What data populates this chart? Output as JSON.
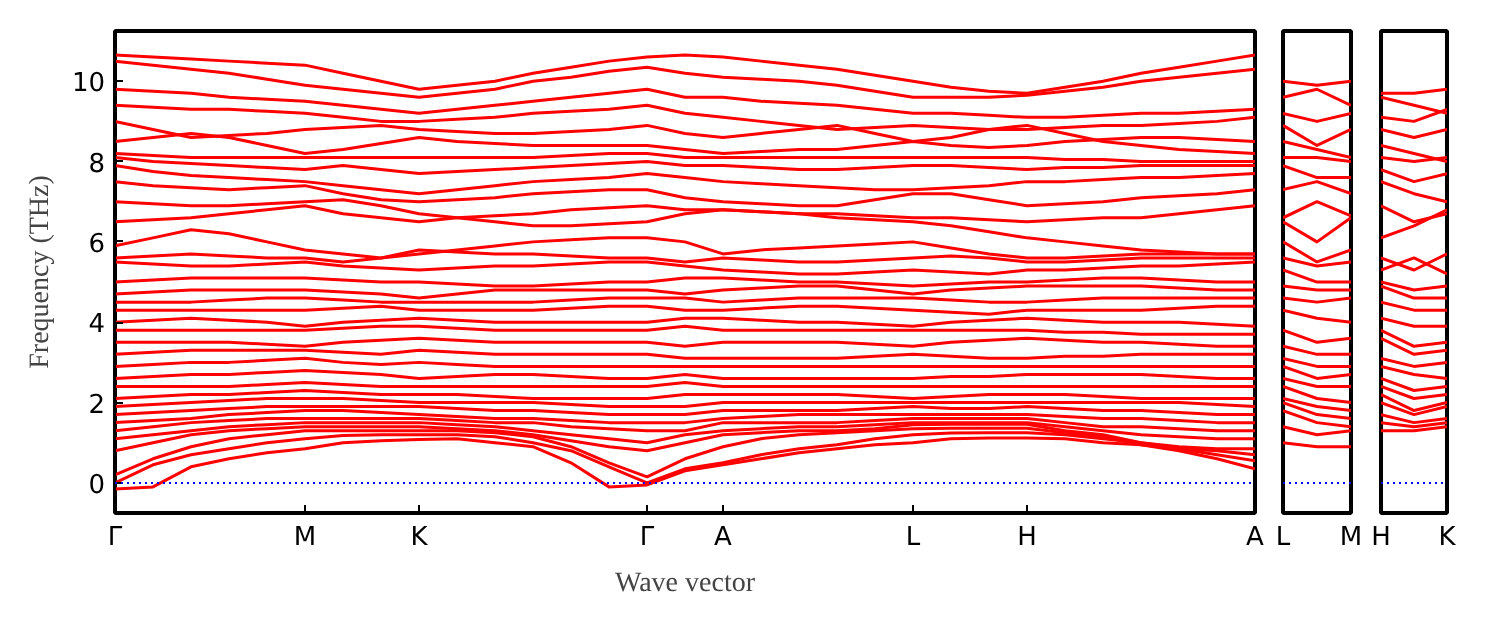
{
  "chart_data": [
    {
      "type": "line",
      "xlabel": "Wave vector",
      "ylabel": "Frequency (THz)",
      "ylim": [
        -0.75,
        11.25
      ],
      "yticks": [
        0,
        2,
        4,
        6,
        8,
        10
      ],
      "categories": [
        "Γ",
        null,
        null,
        null,
        null,
        "M",
        null,
        null,
        "K",
        null,
        null,
        null,
        null,
        null,
        "Γ",
        null,
        "A",
        null,
        null,
        null,
        null,
        "L",
        null,
        null,
        "H",
        null,
        null,
        null,
        null,
        null,
        "A"
      ],
      "ref_lines": [
        {
          "axis": "y",
          "value": 0,
          "color": "#0000ff",
          "line_style": "dotted"
        }
      ],
      "series": [
        {
          "color": "#ff0000",
          "values": [
            10.65,
            10.6,
            10.55,
            10.5,
            10.45,
            10.4,
            10.2,
            10.0,
            9.8,
            9.9,
            10.0,
            10.2,
            10.35,
            10.5,
            10.6,
            10.65,
            10.6,
            10.5,
            10.4,
            10.3,
            10.15,
            10.0,
            9.85,
            9.75,
            9.7,
            9.85,
            10.0,
            10.2,
            10.35,
            10.5,
            10.65
          ]
        },
        {
          "color": "#ff0000",
          "values": [
            10.5,
            10.4,
            10.3,
            10.2,
            10.05,
            9.9,
            9.8,
            9.7,
            9.6,
            9.7,
            9.8,
            10.0,
            10.1,
            10.25,
            10.35,
            10.2,
            10.1,
            10.05,
            10.0,
            9.9,
            9.75,
            9.6,
            9.6,
            9.6,
            9.65,
            9.75,
            9.85,
            10.0,
            10.1,
            10.2,
            10.3
          ]
        },
        {
          "color": "#ff0000",
          "values": [
            9.8,
            9.75,
            9.7,
            9.6,
            9.55,
            9.5,
            9.4,
            9.3,
            9.2,
            9.3,
            9.4,
            9.5,
            9.6,
            9.7,
            9.8,
            9.6,
            9.6,
            9.5,
            9.45,
            9.4,
            9.3,
            9.2,
            9.2,
            9.15,
            9.1,
            9.1,
            9.15,
            9.2,
            9.2,
            9.25,
            9.3
          ]
        },
        {
          "color": "#ff0000",
          "values": [
            9.4,
            9.35,
            9.3,
            9.3,
            9.25,
            9.2,
            9.1,
            9.0,
            9.0,
            9.05,
            9.1,
            9.2,
            9.25,
            9.3,
            9.4,
            9.2,
            9.1,
            9.0,
            8.9,
            8.8,
            8.85,
            8.9,
            8.85,
            8.8,
            8.8,
            8.85,
            8.9,
            8.9,
            8.95,
            9.0,
            9.1
          ]
        },
        {
          "color": "#ff0000",
          "values": [
            9.0,
            8.8,
            8.6,
            8.65,
            8.7,
            8.8,
            8.85,
            8.9,
            8.8,
            8.75,
            8.7,
            8.7,
            8.75,
            8.8,
            8.9,
            8.7,
            8.6,
            8.7,
            8.8,
            8.9,
            8.7,
            8.5,
            8.6,
            8.8,
            8.9,
            8.7,
            8.5,
            8.4,
            8.3,
            8.25,
            8.2
          ]
        },
        {
          "color": "#ff0000",
          "values": [
            8.5,
            8.6,
            8.7,
            8.6,
            8.4,
            8.2,
            8.3,
            8.45,
            8.6,
            8.5,
            8.45,
            8.4,
            8.4,
            8.4,
            8.4,
            8.3,
            8.2,
            8.25,
            8.3,
            8.3,
            8.4,
            8.5,
            8.4,
            8.35,
            8.4,
            8.5,
            8.55,
            8.6,
            8.6,
            8.55,
            8.5
          ]
        },
        {
          "color": "#ff0000",
          "values": [
            8.2,
            8.15,
            8.1,
            8.1,
            8.1,
            8.1,
            8.1,
            8.1,
            8.1,
            8.1,
            8.1,
            8.1,
            8.15,
            8.2,
            8.2,
            8.1,
            8.1,
            8.1,
            8.1,
            8.1,
            8.1,
            8.1,
            8.1,
            8.1,
            8.1,
            8.05,
            8.05,
            8.0,
            8.0,
            8.0,
            8.0
          ]
        },
        {
          "color": "#ff0000",
          "values": [
            8.1,
            8.0,
            7.95,
            7.9,
            7.85,
            7.8,
            7.9,
            7.8,
            7.7,
            7.75,
            7.8,
            7.85,
            7.9,
            7.95,
            8.0,
            7.9,
            7.9,
            7.85,
            7.8,
            7.8,
            7.85,
            7.9,
            7.9,
            7.85,
            7.8,
            7.85,
            7.85,
            7.9,
            7.9,
            7.9,
            7.9
          ]
        },
        {
          "color": "#ff0000",
          "values": [
            7.9,
            7.75,
            7.65,
            7.6,
            7.55,
            7.5,
            7.4,
            7.3,
            7.2,
            7.3,
            7.4,
            7.5,
            7.55,
            7.6,
            7.7,
            7.6,
            7.5,
            7.45,
            7.4,
            7.35,
            7.3,
            7.3,
            7.35,
            7.4,
            7.5,
            7.5,
            7.55,
            7.6,
            7.6,
            7.65,
            7.7
          ]
        },
        {
          "color": "#ff0000",
          "values": [
            7.5,
            7.4,
            7.35,
            7.3,
            7.35,
            7.4,
            7.2,
            7.05,
            7.0,
            7.05,
            7.1,
            7.2,
            7.25,
            7.3,
            7.3,
            7.1,
            7.0,
            6.95,
            6.9,
            6.9,
            7.05,
            7.2,
            7.2,
            7.05,
            6.9,
            6.95,
            7.0,
            7.1,
            7.15,
            7.2,
            7.3
          ]
        },
        {
          "color": "#ff0000",
          "values": [
            7.0,
            6.95,
            6.9,
            6.9,
            6.95,
            7.0,
            7.05,
            6.9,
            6.7,
            6.6,
            6.5,
            6.4,
            6.4,
            6.45,
            6.5,
            6.7,
            6.8,
            6.75,
            6.7,
            6.6,
            6.55,
            6.5,
            6.4,
            6.25,
            6.1,
            6.0,
            5.9,
            5.8,
            5.75,
            5.7,
            5.7
          ]
        },
        {
          "color": "#ff0000",
          "values": [
            6.5,
            6.55,
            6.6,
            6.7,
            6.8,
            6.9,
            6.7,
            6.6,
            6.5,
            6.6,
            6.65,
            6.7,
            6.8,
            6.85,
            6.9,
            6.8,
            6.8,
            6.75,
            6.7,
            6.7,
            6.65,
            6.6,
            6.6,
            6.55,
            6.5,
            6.55,
            6.6,
            6.6,
            6.7,
            6.8,
            6.9
          ]
        },
        {
          "color": "#ff0000",
          "values": [
            5.9,
            6.1,
            6.3,
            6.2,
            6.0,
            5.8,
            5.7,
            5.6,
            5.7,
            5.8,
            5.9,
            6.0,
            6.05,
            6.1,
            6.1,
            6.0,
            5.7,
            5.8,
            5.85,
            5.9,
            5.95,
            6.0,
            5.85,
            5.7,
            5.6,
            5.6,
            5.65,
            5.7,
            5.7,
            5.7,
            5.7
          ]
        },
        {
          "color": "#ff0000",
          "values": [
            5.6,
            5.65,
            5.7,
            5.65,
            5.6,
            5.6,
            5.5,
            5.6,
            5.8,
            5.75,
            5.7,
            5.7,
            5.65,
            5.6,
            5.6,
            5.5,
            5.6,
            5.55,
            5.5,
            5.5,
            5.55,
            5.6,
            5.65,
            5.6,
            5.5,
            5.5,
            5.55,
            5.6,
            5.6,
            5.6,
            5.6
          ]
        },
        {
          "color": "#ff0000",
          "values": [
            5.5,
            5.45,
            5.4,
            5.4,
            5.45,
            5.5,
            5.4,
            5.35,
            5.3,
            5.35,
            5.4,
            5.4,
            5.45,
            5.5,
            5.5,
            5.4,
            5.3,
            5.25,
            5.2,
            5.2,
            5.25,
            5.3,
            5.25,
            5.2,
            5.3,
            5.3,
            5.35,
            5.4,
            5.4,
            5.45,
            5.5
          ]
        },
        {
          "color": "#ff0000",
          "values": [
            5.0,
            5.05,
            5.1,
            5.1,
            5.1,
            5.1,
            5.05,
            5.0,
            5.0,
            4.95,
            4.9,
            4.9,
            4.95,
            5.0,
            5.0,
            5.1,
            5.1,
            5.05,
            5.0,
            5.0,
            4.95,
            4.9,
            4.95,
            5.0,
            5.0,
            5.05,
            5.1,
            5.1,
            5.05,
            5.0,
            5.0
          ]
        },
        {
          "color": "#ff0000",
          "values": [
            4.7,
            4.75,
            4.8,
            4.8,
            4.8,
            4.8,
            4.75,
            4.7,
            4.6,
            4.7,
            4.8,
            4.8,
            4.8,
            4.8,
            4.8,
            4.7,
            4.8,
            4.85,
            4.9,
            4.9,
            4.8,
            4.7,
            4.8,
            4.85,
            4.9,
            4.9,
            4.9,
            4.9,
            4.85,
            4.8,
            4.8
          ]
        },
        {
          "color": "#ff0000",
          "values": [
            4.5,
            4.5,
            4.5,
            4.55,
            4.6,
            4.6,
            4.55,
            4.5,
            4.5,
            4.5,
            4.5,
            4.5,
            4.55,
            4.6,
            4.6,
            4.6,
            4.5,
            4.55,
            4.6,
            4.6,
            4.6,
            4.6,
            4.55,
            4.5,
            4.5,
            4.55,
            4.6,
            4.6,
            4.6,
            4.6,
            4.6
          ]
        },
        {
          "color": "#ff0000",
          "values": [
            4.3,
            4.3,
            4.3,
            4.3,
            4.3,
            4.3,
            4.35,
            4.4,
            4.3,
            4.3,
            4.3,
            4.3,
            4.35,
            4.4,
            4.4,
            4.3,
            4.3,
            4.35,
            4.4,
            4.4,
            4.35,
            4.3,
            4.25,
            4.2,
            4.3,
            4.3,
            4.3,
            4.3,
            4.35,
            4.4,
            4.4
          ]
        },
        {
          "color": "#ff0000",
          "values": [
            4.0,
            4.05,
            4.1,
            4.05,
            4.0,
            3.9,
            4.0,
            4.05,
            4.1,
            4.05,
            4.0,
            4.0,
            4.0,
            4.0,
            4.0,
            4.1,
            4.1,
            4.05,
            4.0,
            4.0,
            3.95,
            3.9,
            4.0,
            4.05,
            4.1,
            4.05,
            4.0,
            4.0,
            4.0,
            3.95,
            3.9
          ]
        },
        {
          "color": "#ff0000",
          "values": [
            3.8,
            3.8,
            3.8,
            3.8,
            3.8,
            3.8,
            3.85,
            3.9,
            3.9,
            3.85,
            3.8,
            3.8,
            3.8,
            3.8,
            3.8,
            3.9,
            3.8,
            3.8,
            3.8,
            3.8,
            3.8,
            3.8,
            3.8,
            3.8,
            3.8,
            3.75,
            3.75,
            3.7,
            3.7,
            3.7,
            3.7
          ]
        },
        {
          "color": "#ff0000",
          "values": [
            3.5,
            3.5,
            3.5,
            3.5,
            3.45,
            3.4,
            3.5,
            3.55,
            3.6,
            3.55,
            3.5,
            3.5,
            3.5,
            3.5,
            3.5,
            3.4,
            3.5,
            3.5,
            3.5,
            3.5,
            3.45,
            3.4,
            3.5,
            3.55,
            3.6,
            3.55,
            3.5,
            3.5,
            3.45,
            3.4,
            3.4
          ]
        },
        {
          "color": "#ff0000",
          "values": [
            3.2,
            3.25,
            3.3,
            3.3,
            3.3,
            3.3,
            3.25,
            3.2,
            3.3,
            3.25,
            3.2,
            3.2,
            3.2,
            3.2,
            3.2,
            3.1,
            3.1,
            3.1,
            3.1,
            3.1,
            3.15,
            3.2,
            3.15,
            3.1,
            3.1,
            3.15,
            3.15,
            3.2,
            3.2,
            3.2,
            3.2
          ]
        },
        {
          "color": "#ff0000",
          "values": [
            2.9,
            2.95,
            3.0,
            3.0,
            3.05,
            3.1,
            3.0,
            2.95,
            3.0,
            2.95,
            2.9,
            2.9,
            2.9,
            2.9,
            2.9,
            2.9,
            2.9,
            2.9,
            2.9,
            2.9,
            2.9,
            2.9,
            2.9,
            2.9,
            2.9,
            2.9,
            2.9,
            2.9,
            2.9,
            2.9,
            2.9
          ]
        },
        {
          "color": "#ff0000",
          "values": [
            2.6,
            2.65,
            2.7,
            2.7,
            2.75,
            2.8,
            2.75,
            2.7,
            2.6,
            2.65,
            2.7,
            2.7,
            2.65,
            2.6,
            2.6,
            2.7,
            2.6,
            2.6,
            2.6,
            2.6,
            2.6,
            2.6,
            2.65,
            2.65,
            2.7,
            2.7,
            2.7,
            2.7,
            2.65,
            2.6,
            2.6
          ]
        },
        {
          "color": "#ff0000",
          "values": [
            2.4,
            2.4,
            2.4,
            2.4,
            2.45,
            2.5,
            2.45,
            2.4,
            2.4,
            2.4,
            2.4,
            2.4,
            2.4,
            2.4,
            2.4,
            2.5,
            2.4,
            2.4,
            2.4,
            2.4,
            2.4,
            2.4,
            2.4,
            2.4,
            2.4,
            2.4,
            2.4,
            2.4,
            2.4,
            2.4,
            2.4
          ]
        },
        {
          "color": "#ff0000",
          "values": [
            2.1,
            2.15,
            2.2,
            2.2,
            2.25,
            2.3,
            2.25,
            2.2,
            2.2,
            2.2,
            2.15,
            2.1,
            2.1,
            2.1,
            2.1,
            2.2,
            2.2,
            2.2,
            2.2,
            2.2,
            2.15,
            2.1,
            2.15,
            2.2,
            2.2,
            2.2,
            2.15,
            2.1,
            2.1,
            2.1,
            2.1
          ]
        },
        {
          "color": "#ff0000",
          "values": [
            1.9,
            1.95,
            2.0,
            2.05,
            2.1,
            2.1,
            2.1,
            2.05,
            2.0,
            2.0,
            2.0,
            2.0,
            1.95,
            1.9,
            1.9,
            1.9,
            2.0,
            2.0,
            2.0,
            2.0,
            2.0,
            2.0,
            2.0,
            2.0,
            2.0,
            2.0,
            2.0,
            2.0,
            2.0,
            1.95,
            1.9
          ]
        },
        {
          "color": "#ff0000",
          "values": [
            1.7,
            1.75,
            1.8,
            1.85,
            1.9,
            1.9,
            1.9,
            1.9,
            1.9,
            1.85,
            1.8,
            1.8,
            1.75,
            1.7,
            1.7,
            1.7,
            1.8,
            1.8,
            1.8,
            1.8,
            1.85,
            1.9,
            1.85,
            1.85,
            1.9,
            1.85,
            1.8,
            1.8,
            1.75,
            1.7,
            1.7
          ]
        },
        {
          "color": "#ff0000",
          "values": [
            1.5,
            1.55,
            1.6,
            1.7,
            1.75,
            1.8,
            1.8,
            1.75,
            1.7,
            1.65,
            1.6,
            1.6,
            1.55,
            1.5,
            1.5,
            1.5,
            1.6,
            1.65,
            1.7,
            1.7,
            1.7,
            1.7,
            1.7,
            1.7,
            1.7,
            1.65,
            1.6,
            1.6,
            1.55,
            1.5,
            1.5
          ]
        },
        {
          "color": "#ff0000",
          "values": [
            1.3,
            1.4,
            1.5,
            1.55,
            1.6,
            1.6,
            1.6,
            1.6,
            1.6,
            1.55,
            1.5,
            1.5,
            1.4,
            1.35,
            1.3,
            1.3,
            1.5,
            1.5,
            1.5,
            1.5,
            1.55,
            1.6,
            1.6,
            1.6,
            1.6,
            1.5,
            1.4,
            1.4,
            1.35,
            1.3,
            1.3
          ]
        },
        {
          "color": "#ff0000",
          "values": [
            1.1,
            1.2,
            1.3,
            1.4,
            1.45,
            1.5,
            1.5,
            1.5,
            1.5,
            1.45,
            1.4,
            1.3,
            1.2,
            1.1,
            1.0,
            1.2,
            1.3,
            1.35,
            1.4,
            1.4,
            1.45,
            1.5,
            1.5,
            1.5,
            1.5,
            1.4,
            1.3,
            1.2,
            1.15,
            1.1,
            1.1
          ]
        },
        {
          "color": "#ff0000",
          "values": [
            0.8,
            1.0,
            1.2,
            1.3,
            1.35,
            1.4,
            1.4,
            1.4,
            1.4,
            1.35,
            1.3,
            1.2,
            1.05,
            0.9,
            0.8,
            1.0,
            1.2,
            1.25,
            1.3,
            1.3,
            1.35,
            1.45,
            1.46,
            1.46,
            1.46,
            1.3,
            1.2,
            1.0,
            0.9,
            0.85,
            0.85
          ]
        },
        {
          "color": "#ff0000",
          "values": [
            0.2,
            0.6,
            0.9,
            1.1,
            1.2,
            1.3,
            1.3,
            1.3,
            1.3,
            1.3,
            1.25,
            1.15,
            0.9,
            0.5,
            0.15,
            0.6,
            0.9,
            1.1,
            1.2,
            1.25,
            1.3,
            1.35,
            1.36,
            1.36,
            1.36,
            1.25,
            1.15,
            0.95,
            0.85,
            0.8,
            0.7
          ]
        },
        {
          "color": "#ff0000",
          "values": [
            0,
            0.45,
            0.7,
            0.85,
            1.0,
            1.1,
            1.18,
            1.2,
            1.2,
            1.2,
            1.15,
            1.0,
            0.8,
            0.4,
            0,
            0.35,
            0.5,
            0.7,
            0.85,
            0.95,
            1.1,
            1.2,
            1.24,
            1.25,
            1.25,
            1.2,
            1.1,
            1.0,
            0.85,
            0.7,
            0.55
          ]
        },
        {
          "color": "#ff0000",
          "values": [
            -0.15,
            -0.1,
            0.4,
            0.6,
            0.75,
            0.85,
            1.0,
            1.05,
            1.08,
            1.1,
            1.0,
            0.9,
            0.5,
            -0.1,
            -0.05,
            0.3,
            0.45,
            0.6,
            0.75,
            0.85,
            0.95,
            1.0,
            1.1,
            1.12,
            1.12,
            1.1,
            1.0,
            0.95,
            0.8,
            0.6,
            0.35
          ]
        }
      ]
    },
    {
      "type": "line",
      "tick_labels": "x",
      "ylim": [
        -0.75,
        11.25
      ],
      "yticks": [
        0,
        2,
        4,
        6,
        8,
        10
      ],
      "categories": [
        "L",
        null,
        "M"
      ],
      "ref_lines": [
        {
          "axis": "y",
          "value": 0,
          "color": "#0000ff",
          "line_style": "dotted"
        }
      ],
      "series": [
        {
          "color": "#ff0000",
          "values": [
            10.0,
            9.9,
            10.0
          ]
        },
        {
          "color": "#ff0000",
          "values": [
            9.6,
            9.8,
            9.4
          ]
        },
        {
          "color": "#ff0000",
          "values": [
            9.2,
            9.0,
            9.2
          ]
        },
        {
          "color": "#ff0000",
          "values": [
            8.9,
            8.4,
            8.8
          ]
        },
        {
          "color": "#ff0000",
          "values": [
            8.5,
            8.3,
            8.1
          ]
        },
        {
          "color": "#ff0000",
          "values": [
            8.1,
            8.1,
            8.0
          ]
        },
        {
          "color": "#ff0000",
          "values": [
            7.9,
            7.6,
            7.6
          ]
        },
        {
          "color": "#ff0000",
          "values": [
            7.3,
            7.5,
            7.2
          ]
        },
        {
          "color": "#ff0000",
          "values": [
            6.5,
            6.0,
            6.6
          ]
        },
        {
          "color": "#ff0000",
          "values": [
            6.6,
            7.0,
            6.65
          ]
        },
        {
          "color": "#ff0000",
          "values": [
            6.0,
            5.5,
            5.8
          ]
        },
        {
          "color": "#ff0000",
          "values": [
            5.6,
            5.4,
            5.5
          ]
        },
        {
          "color": "#ff0000",
          "values": [
            5.3,
            5.0,
            5.0
          ]
        },
        {
          "color": "#ff0000",
          "values": [
            4.9,
            4.8,
            4.8
          ]
        },
        {
          "color": "#ff0000",
          "values": [
            4.6,
            4.5,
            4.6
          ]
        },
        {
          "color": "#ff0000",
          "values": [
            4.3,
            4.1,
            4.0
          ]
        },
        {
          "color": "#ff0000",
          "values": [
            3.8,
            3.5,
            3.6
          ]
        },
        {
          "color": "#ff0000",
          "values": [
            3.4,
            3.2,
            3.2
          ]
        },
        {
          "color": "#ff0000",
          "values": [
            3.1,
            2.9,
            2.9
          ]
        },
        {
          "color": "#ff0000",
          "values": [
            2.9,
            2.6,
            2.7
          ]
        },
        {
          "color": "#ff0000",
          "values": [
            2.6,
            2.4,
            2.4
          ]
        },
        {
          "color": "#ff0000",
          "values": [
            2.4,
            2.1,
            2.0
          ]
        },
        {
          "color": "#ff0000",
          "values": [
            2.1,
            1.9,
            1.8
          ]
        },
        {
          "color": "#ff0000",
          "values": [
            2.0,
            1.7,
            1.6
          ]
        },
        {
          "color": "#ff0000",
          "values": [
            1.8,
            1.5,
            1.4
          ]
        },
        {
          "color": "#ff0000",
          "values": [
            1.4,
            1.2,
            1.3
          ]
        },
        {
          "color": "#ff0000",
          "values": [
            1.0,
            0.9,
            0.9
          ]
        }
      ]
    },
    {
      "type": "line",
      "tick_labels": "x",
      "ylim": [
        -0.75,
        11.25
      ],
      "yticks": [
        0,
        2,
        4,
        6,
        8,
        10
      ],
      "categories": [
        "H",
        null,
        "K"
      ],
      "ref_lines": [
        {
          "axis": "y",
          "value": 0,
          "color": "#0000ff",
          "line_style": "dotted"
        }
      ],
      "series": [
        {
          "color": "#ff0000",
          "values": [
            9.7,
            9.7,
            9.8
          ]
        },
        {
          "color": "#ff0000",
          "values": [
            9.6,
            9.4,
            9.2
          ]
        },
        {
          "color": "#ff0000",
          "values": [
            9.1,
            9.0,
            9.3
          ]
        },
        {
          "color": "#ff0000",
          "values": [
            8.8,
            8.6,
            8.8
          ]
        },
        {
          "color": "#ff0000",
          "values": [
            8.4,
            8.2,
            8.0
          ]
        },
        {
          "color": "#ff0000",
          "values": [
            8.1,
            8.0,
            8.1
          ]
        },
        {
          "color": "#ff0000",
          "values": [
            7.8,
            7.5,
            7.7
          ]
        },
        {
          "color": "#ff0000",
          "values": [
            7.5,
            7.2,
            7.0
          ]
        },
        {
          "color": "#ff0000",
          "values": [
            6.9,
            6.5,
            6.7
          ]
        },
        {
          "color": "#ff0000",
          "values": [
            6.1,
            6.4,
            6.8
          ]
        },
        {
          "color": "#ff0000",
          "values": [
            5.6,
            5.3,
            5.7
          ]
        },
        {
          "color": "#ff0000",
          "values": [
            5.3,
            5.6,
            5.2
          ]
        },
        {
          "color": "#ff0000",
          "values": [
            5.0,
            4.8,
            4.9
          ]
        },
        {
          "color": "#ff0000",
          "values": [
            4.9,
            4.6,
            4.6
          ]
        },
        {
          "color": "#ff0000",
          "values": [
            4.5,
            4.3,
            4.3
          ]
        },
        {
          "color": "#ff0000",
          "values": [
            4.1,
            3.9,
            3.9
          ]
        },
        {
          "color": "#ff0000",
          "values": [
            3.8,
            3.4,
            3.5
          ]
        },
        {
          "color": "#ff0000",
          "values": [
            3.6,
            3.2,
            3.3
          ]
        },
        {
          "color": "#ff0000",
          "values": [
            3.1,
            2.9,
            3.0
          ]
        },
        {
          "color": "#ff0000",
          "values": [
            2.9,
            2.7,
            2.6
          ]
        },
        {
          "color": "#ff0000",
          "values": [
            2.6,
            2.3,
            2.4
          ]
        },
        {
          "color": "#ff0000",
          "values": [
            2.4,
            2.1,
            2.2
          ]
        },
        {
          "color": "#ff0000",
          "values": [
            2.2,
            1.8,
            2.0
          ]
        },
        {
          "color": "#ff0000",
          "values": [
            2.0,
            1.7,
            1.9
          ]
        },
        {
          "color": "#ff0000",
          "values": [
            1.7,
            1.5,
            1.6
          ]
        },
        {
          "color": "#ff0000",
          "values": [
            1.5,
            1.4,
            1.5
          ]
        },
        {
          "color": "#ff0000",
          "values": [
            1.3,
            1.3,
            1.4
          ]
        }
      ]
    }
  ]
}
